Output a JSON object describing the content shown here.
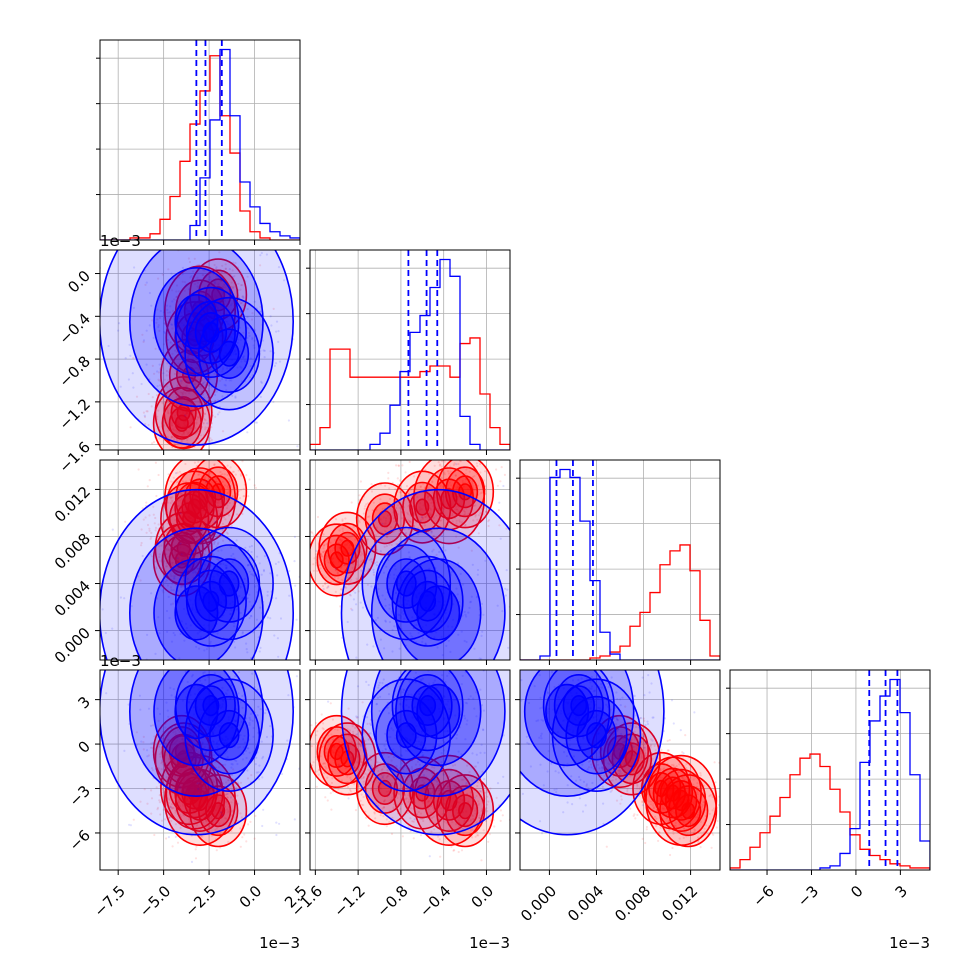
{
  "chart_data": {
    "type": "corner",
    "grid": true,
    "dims": [
      {
        "range": [
          -8.5,
          2.5
        ],
        "ticks": [
          -7.5,
          -5.0,
          -2.5,
          0.0,
          2.5
        ],
        "tick_labels": [
          "−7.5",
          "−5.0",
          "−2.5",
          "0.0",
          "2.5"
        ],
        "offset_label": "1e−3"
      },
      {
        "range": [
          -1.65,
          0.22
        ],
        "ticks": [
          -1.6,
          -1.2,
          -0.8,
          -0.4,
          0.0
        ],
        "tick_labels": [
          "−1.6",
          "−1.2",
          "−0.8",
          "−0.4",
          "0.0"
        ],
        "offset_label": "1e−3"
      },
      {
        "range": [
          -0.0025,
          0.0145
        ],
        "ticks": [
          0.0,
          0.004,
          0.008,
          0.012
        ],
        "tick_labels": [
          "0.000",
          "0.004",
          "0.008",
          "0.012"
        ]
      },
      {
        "range": [
          -8.5,
          5.0
        ],
        "ticks": [
          -6,
          -3,
          0,
          3
        ],
        "tick_labels": [
          "−6",
          "−3",
          "0",
          "3"
        ],
        "offset_label": "1e−3"
      }
    ],
    "series": [
      {
        "color": "#ff0000",
        "hist": [
          [
            0,
            0,
            0,
            1,
            1,
            3,
            10,
            21,
            38,
            56,
            72,
            89,
            60,
            42,
            14,
            4,
            1,
            0,
            0,
            0
          ],
          [
            2,
            8,
            36,
            36,
            26,
            26,
            26,
            26,
            26,
            26,
            26,
            28,
            30,
            30,
            26,
            38,
            40,
            20,
            8,
            2
          ],
          [
            0,
            0,
            0,
            0,
            0,
            0,
            0,
            1,
            2,
            4,
            7,
            17,
            24,
            34,
            48,
            55,
            58,
            45,
            20,
            2
          ],
          [
            1,
            5,
            11,
            18,
            26,
            35,
            46,
            54,
            56,
            50,
            39,
            28,
            17,
            10,
            7,
            5,
            3,
            2,
            1,
            1
          ]
        ],
        "quantiles": null,
        "clusters": [
          [
            -3.6,
            -0.95,
            0.0095,
            -3.0,
            0.16
          ],
          [
            -3.3,
            -0.6,
            0.0105,
            -3.3,
            0.16
          ],
          [
            -3.9,
            -1.3,
            0.007,
            -1.0,
            0.16
          ],
          [
            -2.0,
            -0.2,
            0.0118,
            -4.5,
            0.16
          ],
          [
            -4.0,
            -1.4,
            0.006,
            -0.5,
            0.16
          ],
          [
            -3.0,
            -0.35,
            0.0112,
            -3.8,
            0.2
          ]
        ]
      },
      {
        "color": "#0000ff",
        "hist": [
          [
            0,
            0,
            0,
            0,
            0,
            0,
            0,
            0,
            0,
            7,
            30,
            58,
            92,
            60,
            28,
            16,
            8,
            4,
            2,
            1
          ],
          [
            0,
            0,
            0,
            0,
            0,
            0,
            2,
            6,
            16,
            28,
            42,
            48,
            58,
            68,
            62,
            12,
            2,
            0,
            0,
            0
          ],
          [
            0,
            0,
            2,
            92,
            96,
            92,
            70,
            40,
            14,
            3,
            0,
            0,
            0,
            0,
            0,
            0,
            0,
            0,
            0,
            0
          ],
          [
            0,
            0,
            0,
            0,
            0,
            0,
            0,
            0,
            0,
            1,
            2,
            8,
            20,
            52,
            72,
            84,
            92,
            76,
            46,
            14
          ]
        ],
        "quantiles": [
          [
            -3.2,
            -2.7,
            -1.8
          ],
          [
            -0.73,
            -0.56,
            -0.46
          ],
          [
            0.0006,
            0.002,
            0.0037
          ],
          [
            0.9,
            2.0,
            2.8
          ]
        ],
        "clusters": [
          [
            -3.2,
            -0.45,
            0.0015,
            2.2,
            0.55
          ],
          [
            -1.4,
            -0.75,
            0.004,
            0.6,
            0.25
          ],
          [
            -2.4,
            -0.55,
            0.0025,
            2.6,
            0.2
          ]
        ]
      }
    ]
  }
}
